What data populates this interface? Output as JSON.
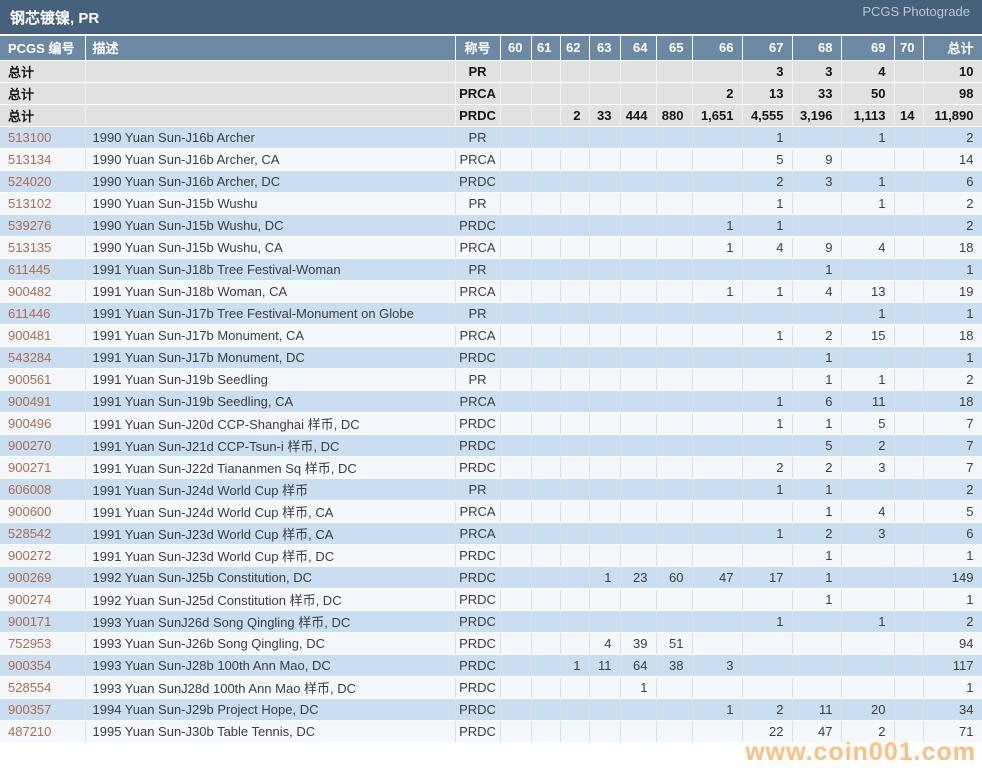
{
  "header": {
    "title": "钢芯镀镍, PR",
    "photograde_label": "PCGS Photograde"
  },
  "watermark": "www.coin001.com",
  "colors": {
    "title_bar": "#45617c",
    "header_row": "#6c89a4",
    "row_blue": "#c9def0",
    "row_white": "#f4f8fc",
    "summary_gray": "#e1e1e1",
    "pcgs_link": "#ad6c4d",
    "watermark_orange": "#ff8c1a"
  },
  "table": {
    "columns": [
      {
        "key": "pcgs",
        "label": "PCGS 编号"
      },
      {
        "key": "desc",
        "label": "描述"
      },
      {
        "key": "desig",
        "label": "称号"
      },
      {
        "key": "g60",
        "label": "60"
      },
      {
        "key": "g61",
        "label": "61"
      },
      {
        "key": "g62",
        "label": "62"
      },
      {
        "key": "g63",
        "label": "63"
      },
      {
        "key": "g64",
        "label": "64"
      },
      {
        "key": "g65",
        "label": "65"
      },
      {
        "key": "g66",
        "label": "66"
      },
      {
        "key": "g67",
        "label": "67"
      },
      {
        "key": "g68",
        "label": "68"
      },
      {
        "key": "g69",
        "label": "69"
      },
      {
        "key": "g70",
        "label": "70"
      },
      {
        "key": "total",
        "label": "总计"
      }
    ],
    "total_label": "总计",
    "summary_rows": [
      {
        "desig": "PR",
        "grades": [
          "",
          "",
          "",
          "",
          "",
          "",
          "",
          "3",
          "3",
          "4",
          ""
        ],
        "total": "10"
      },
      {
        "desig": "PRCA",
        "grades": [
          "",
          "",
          "",
          "",
          "",
          "",
          "2",
          "13",
          "33",
          "50",
          ""
        ],
        "total": "98"
      },
      {
        "desig": "PRDC",
        "grades": [
          "",
          "",
          "2",
          "33",
          "444",
          "880",
          "1,651",
          "4,555",
          "3,196",
          "1,113",
          "14"
        ],
        "total": "11,890"
      }
    ],
    "rows": [
      {
        "pcgs": "513100",
        "desc": "1990 Yuan Sun-J16b Archer",
        "desig": "PR",
        "grades": [
          "",
          "",
          "",
          "",
          "",
          "",
          "",
          "1",
          "",
          "1",
          ""
        ],
        "total": "2"
      },
      {
        "pcgs": "513134",
        "desc": "1990 Yuan Sun-J16b Archer, CA",
        "desig": "PRCA",
        "grades": [
          "",
          "",
          "",
          "",
          "",
          "",
          "",
          "5",
          "9",
          "",
          ""
        ],
        "total": "14"
      },
      {
        "pcgs": "524020",
        "desc": "1990 Yuan Sun-J16b Archer, DC",
        "desig": "PRDC",
        "grades": [
          "",
          "",
          "",
          "",
          "",
          "",
          "",
          "2",
          "3",
          "1",
          ""
        ],
        "total": "6"
      },
      {
        "pcgs": "513102",
        "desc": "1990 Yuan Sun-J15b Wushu",
        "desig": "PR",
        "grades": [
          "",
          "",
          "",
          "",
          "",
          "",
          "",
          "1",
          "",
          "1",
          ""
        ],
        "total": "2"
      },
      {
        "pcgs": "539276",
        "desc": "1990 Yuan Sun-J15b Wushu, DC",
        "desig": "PRDC",
        "grades": [
          "",
          "",
          "",
          "",
          "",
          "",
          "1",
          "1",
          "",
          "",
          ""
        ],
        "total": "2"
      },
      {
        "pcgs": "513135",
        "desc": "1990 Yuan Sun-J15b Wushu, CA",
        "desig": "PRCA",
        "grades": [
          "",
          "",
          "",
          "",
          "",
          "",
          "1",
          "4",
          "9",
          "4",
          ""
        ],
        "total": "18"
      },
      {
        "pcgs": "611445",
        "desc": "1991 Yuan Sun-J18b Tree Festival-Woman",
        "desig": "PR",
        "grades": [
          "",
          "",
          "",
          "",
          "",
          "",
          "",
          "",
          "1",
          "",
          ""
        ],
        "total": "1"
      },
      {
        "pcgs": "900482",
        "desc": "1991 Yuan Sun-J18b Woman, CA",
        "desig": "PRCA",
        "grades": [
          "",
          "",
          "",
          "",
          "",
          "",
          "1",
          "1",
          "4",
          "13",
          ""
        ],
        "total": "19"
      },
      {
        "pcgs": "611446",
        "desc": "1991 Yuan Sun-J17b Tree Festival-Monument on Globe",
        "desig": "PR",
        "grades": [
          "",
          "",
          "",
          "",
          "",
          "",
          "",
          "",
          "",
          "1",
          ""
        ],
        "total": "1"
      },
      {
        "pcgs": "900481",
        "desc": "1991 Yuan Sun-J17b Monument, CA",
        "desig": "PRCA",
        "grades": [
          "",
          "",
          "",
          "",
          "",
          "",
          "",
          "1",
          "2",
          "15",
          ""
        ],
        "total": "18"
      },
      {
        "pcgs": "543284",
        "desc": "1991 Yuan Sun-J17b Monument, DC",
        "desig": "PRDC",
        "grades": [
          "",
          "",
          "",
          "",
          "",
          "",
          "",
          "",
          "1",
          "",
          ""
        ],
        "total": "1"
      },
      {
        "pcgs": "900561",
        "desc": "1991 Yuan Sun-J19b Seedling",
        "desig": "PR",
        "grades": [
          "",
          "",
          "",
          "",
          "",
          "",
          "",
          "",
          "1",
          "1",
          ""
        ],
        "total": "2"
      },
      {
        "pcgs": "900491",
        "desc": "1991 Yuan Sun-J19b Seedling, CA",
        "desig": "PRCA",
        "grades": [
          "",
          "",
          "",
          "",
          "",
          "",
          "",
          "1",
          "6",
          "11",
          ""
        ],
        "total": "18"
      },
      {
        "pcgs": "900496",
        "desc": "1991 Yuan Sun-J20d CCP-Shanghai 样币, DC",
        "desig": "PRDC",
        "grades": [
          "",
          "",
          "",
          "",
          "",
          "",
          "",
          "1",
          "1",
          "5",
          ""
        ],
        "total": "7"
      },
      {
        "pcgs": "900270",
        "desc": "1991 Yuan Sun-J21d CCP-Tsun-i 样币, DC",
        "desig": "PRDC",
        "grades": [
          "",
          "",
          "",
          "",
          "",
          "",
          "",
          "",
          "5",
          "2",
          ""
        ],
        "total": "7"
      },
      {
        "pcgs": "900271",
        "desc": "1991 Yuan Sun-J22d Tiananmen Sq 样币, DC",
        "desig": "PRDC",
        "grades": [
          "",
          "",
          "",
          "",
          "",
          "",
          "",
          "2",
          "2",
          "3",
          ""
        ],
        "total": "7"
      },
      {
        "pcgs": "606008",
        "desc": "1991 Yuan Sun-J24d World Cup 样币",
        "desig": "PR",
        "grades": [
          "",
          "",
          "",
          "",
          "",
          "",
          "",
          "1",
          "1",
          "",
          ""
        ],
        "total": "2"
      },
      {
        "pcgs": "900600",
        "desc": "1991 Yuan Sun-J24d World Cup 样币, CA",
        "desig": "PRCA",
        "grades": [
          "",
          "",
          "",
          "",
          "",
          "",
          "",
          "",
          "1",
          "4",
          ""
        ],
        "total": "5"
      },
      {
        "pcgs": "528542",
        "desc": "1991 Yuan Sun-J23d World Cup 样币, CA",
        "desig": "PRCA",
        "grades": [
          "",
          "",
          "",
          "",
          "",
          "",
          "",
          "1",
          "2",
          "3",
          ""
        ],
        "total": "6"
      },
      {
        "pcgs": "900272",
        "desc": "1991 Yuan Sun-J23d World Cup 样币, DC",
        "desig": "PRDC",
        "grades": [
          "",
          "",
          "",
          "",
          "",
          "",
          "",
          "",
          "1",
          "",
          ""
        ],
        "total": "1"
      },
      {
        "pcgs": "900269",
        "desc": "1992 Yuan Sun-J25b Constitution, DC",
        "desig": "PRDC",
        "grades": [
          "",
          "",
          "",
          "1",
          "23",
          "60",
          "47",
          "17",
          "1",
          "",
          ""
        ],
        "total": "149"
      },
      {
        "pcgs": "900274",
        "desc": "1992 Yuan Sun-J25d Constitution 样币, DC",
        "desig": "PRDC",
        "grades": [
          "",
          "",
          "",
          "",
          "",
          "",
          "",
          "",
          "1",
          "",
          ""
        ],
        "total": "1"
      },
      {
        "pcgs": "900171",
        "desc": "1993 Yuan SunJ26d Song Qingling 样币, DC",
        "desig": "PRDC",
        "grades": [
          "",
          "",
          "",
          "",
          "",
          "",
          "",
          "1",
          "",
          "1",
          ""
        ],
        "total": "2"
      },
      {
        "pcgs": "752953",
        "desc": "1993 Yuan Sun-J26b Song Qingling, DC",
        "desig": "PRDC",
        "grades": [
          "",
          "",
          "",
          "4",
          "39",
          "51",
          "",
          "",
          "",
          "",
          ""
        ],
        "total": "94"
      },
      {
        "pcgs": "900354",
        "desc": "1993 Yuan Sun-J28b 100th Ann Mao, DC",
        "desig": "PRDC",
        "grades": [
          "",
          "",
          "1",
          "11",
          "64",
          "38",
          "3",
          "",
          "",
          "",
          ""
        ],
        "total": "117"
      },
      {
        "pcgs": "528554",
        "desc": "1993 Yuan SunJ28d 100th Ann Mao 样币, DC",
        "desig": "PRDC",
        "grades": [
          "",
          "",
          "",
          "",
          "1",
          "",
          "",
          "",
          "",
          "",
          ""
        ],
        "total": "1"
      },
      {
        "pcgs": "900357",
        "desc": "1994 Yuan Sun-J29b Project Hope, DC",
        "desig": "PRDC",
        "grades": [
          "",
          "",
          "",
          "",
          "",
          "",
          "1",
          "2",
          "11",
          "20",
          ""
        ],
        "total": "34"
      },
      {
        "pcgs": "487210",
        "desc": "1995 Yuan Sun-J30b Table Tennis, DC",
        "desig": "PRDC",
        "grades": [
          "",
          "",
          "",
          "",
          "",
          "",
          "",
          "22",
          "47",
          "2",
          ""
        ],
        "total": "71"
      }
    ]
  }
}
